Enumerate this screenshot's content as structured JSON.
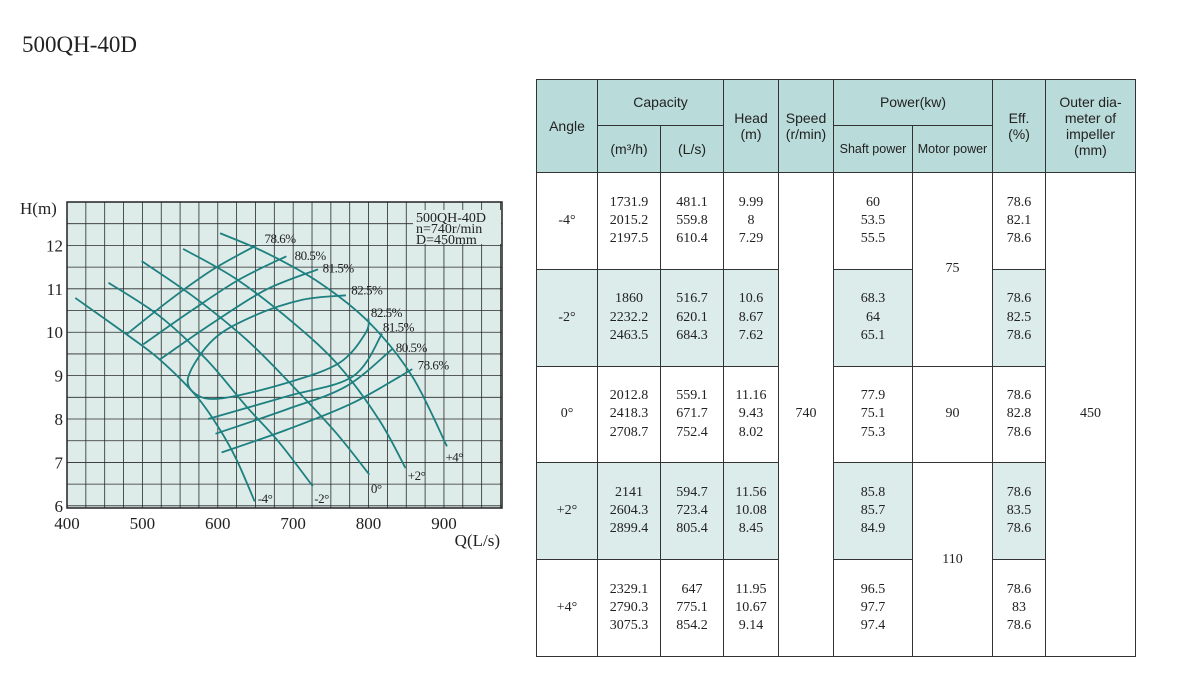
{
  "title": "500QH-40D",
  "chart_data": {
    "type": "line",
    "xlabel": "Q(L/s)",
    "ylabel": "H(m)",
    "xlim": [
      400,
      977
    ],
    "ylim": [
      5.95,
      13.0
    ],
    "xticks": [
      400,
      500,
      600,
      700,
      800,
      900
    ],
    "yticks": [
      6,
      7,
      8,
      9,
      10,
      11,
      12
    ],
    "grid": true,
    "grid_step": {
      "x": 25,
      "y": 0.5
    },
    "colors": {
      "background": "#ddece9",
      "curve": "#1e8080",
      "grid": "#2a2a2a"
    },
    "info_box": [
      "500QH-40D",
      "n=740r/min",
      "D=450mm"
    ],
    "angle_curves": [
      {
        "label": "-4°",
        "label_at": [
          653,
          6.06
        ],
        "points": [
          [
            411,
            10.79
          ],
          [
            479,
            9.95
          ],
          [
            523,
            9.37
          ],
          [
            572,
            8.52
          ],
          [
            603,
            7.75
          ],
          [
            625,
            7.06
          ],
          [
            649,
            6.1
          ]
        ]
      },
      {
        "label": "-2°",
        "label_at": [
          728,
          6.06
        ],
        "points": [
          [
            455,
            11.14
          ],
          [
            523,
            10.37
          ],
          [
            585,
            9.37
          ],
          [
            638,
            8.29
          ],
          [
            682,
            7.45
          ],
          [
            726,
            6.45
          ]
        ]
      },
      {
        "label": "0°",
        "label_at": [
          803,
          6.29
        ],
        "points": [
          [
            499,
            11.64
          ],
          [
            567,
            10.83
          ],
          [
            638,
            9.83
          ],
          [
            700,
            8.75
          ],
          [
            757,
            7.68
          ],
          [
            801,
            6.72
          ]
        ]
      },
      {
        "label": "+2°",
        "label_at": [
          852,
          6.6
        ],
        "points": [
          [
            554,
            11.92
          ],
          [
            625,
            11.22
          ],
          [
            700,
            10.22
          ],
          [
            761,
            9.22
          ],
          [
            814,
            7.98
          ],
          [
            849,
            6.87
          ]
        ]
      },
      {
        "label": "+4°",
        "label_at": [
          902,
          7.02
        ],
        "points": [
          [
            603,
            12.28
          ],
          [
            664,
            11.83
          ],
          [
            735,
            11.14
          ],
          [
            801,
            10.22
          ],
          [
            858,
            8.98
          ],
          [
            904,
            7.37
          ]
        ]
      }
    ],
    "efficiency_curves": [
      {
        "label": "78.6%",
        "label_at": [
          662,
          12.06
        ],
        "points": [
          [
            479,
            9.95
          ],
          [
            537,
            10.75
          ],
          [
            594,
            11.45
          ],
          [
            651,
            12.0
          ]
        ]
      },
      {
        "label": "80.5%",
        "label_at": [
          702,
          11.66
        ],
        "points": [
          [
            501,
            9.72
          ],
          [
            567,
            10.52
          ],
          [
            629,
            11.22
          ],
          [
            691,
            11.75
          ]
        ]
      },
      {
        "label": "81.5%",
        "label_at": [
          739,
          11.38
        ],
        "points": [
          [
            523,
            9.37
          ],
          [
            594,
            10.22
          ],
          [
            664,
            10.98
          ],
          [
            733,
            11.45
          ]
        ]
      },
      {
        "label": "82.5%",
        "label_at": [
          777,
          10.87
        ],
        "points": [
          [
            770,
            10.85
          ],
          [
            713,
            10.75
          ],
          [
            647,
            10.37
          ],
          [
            594,
            9.83
          ],
          [
            561,
            8.98
          ],
          [
            572,
            8.56
          ],
          [
            607,
            8.48
          ],
          [
            691,
            8.83
          ],
          [
            761,
            9.29
          ],
          [
            796,
            9.98
          ],
          [
            800,
            10.33
          ]
        ]
      },
      {
        "label": "82.5%",
        "label_at": [
          803,
          10.35
        ],
        "points": []
      },
      {
        "label": "81.5%",
        "label_at": [
          819,
          10.02
        ],
        "points": [
          [
            587,
            8.0
          ],
          [
            691,
            8.52
          ],
          [
            779,
            8.98
          ],
          [
            818,
            9.97
          ]
        ]
      },
      {
        "label": "80.5%",
        "label_at": [
          836,
          9.54
        ],
        "points": [
          [
            597,
            7.66
          ],
          [
            691,
            8.22
          ],
          [
            770,
            8.75
          ],
          [
            832,
            9.62
          ]
        ]
      },
      {
        "label": "78.6%",
        "label_at": [
          865,
          9.14
        ],
        "points": [
          [
            605,
            7.23
          ],
          [
            691,
            7.75
          ],
          [
            779,
            8.37
          ],
          [
            858,
            9.15
          ]
        ]
      }
    ]
  },
  "table": {
    "headers": {
      "angle": "Angle",
      "capacity": "Capacity",
      "m3h": "(m³/h)",
      "ls": "(L/s)",
      "head": "Head",
      "head_unit": "(m)",
      "speed": "Speed",
      "speed_unit": "(r/min)",
      "power": "Power(kw)",
      "shaft": "Shaft power",
      "motor": "Motor power",
      "eff": "Eff.",
      "eff_unit": "(%)",
      "outer": "Outer dia-meter of impeller",
      "outer_unit": "(mm)"
    },
    "speed": "740",
    "outer_diameter": "450",
    "motor_power": [
      "75",
      "90",
      "110"
    ],
    "rows": [
      {
        "angle": "-4°",
        "m3h": [
          "1731.9",
          "2015.2",
          "2197.5"
        ],
        "ls": [
          "481.1",
          "559.8",
          "610.4"
        ],
        "head": [
          "9.99",
          "8",
          "7.29"
        ],
        "shaft": [
          "60",
          "53.5",
          "55.5"
        ],
        "eff": [
          "78.6",
          "82.1",
          "78.6"
        ]
      },
      {
        "angle": "-2°",
        "m3h": [
          "1860",
          "2232.2",
          "2463.5"
        ],
        "ls": [
          "516.7",
          "620.1",
          "684.3"
        ],
        "head": [
          "10.6",
          "8.67",
          "7.62"
        ],
        "shaft": [
          "68.3",
          "64",
          "65.1"
        ],
        "eff": [
          "78.6",
          "82.5",
          "78.6"
        ]
      },
      {
        "angle": "0°",
        "m3h": [
          "2012.8",
          "2418.3",
          "2708.7"
        ],
        "ls": [
          "559.1",
          "671.7",
          "752.4"
        ],
        "head": [
          "11.16",
          "9.43",
          "8.02"
        ],
        "shaft": [
          "77.9",
          "75.1",
          "75.3"
        ],
        "eff": [
          "78.6",
          "82.8",
          "78.6"
        ]
      },
      {
        "angle": "+2°",
        "m3h": [
          "2141",
          "2604.3",
          "2899.4"
        ],
        "ls": [
          "594.7",
          "723.4",
          "805.4"
        ],
        "head": [
          "11.56",
          "10.08",
          "8.45"
        ],
        "shaft": [
          "85.8",
          "85.7",
          "84.9"
        ],
        "eff": [
          "78.6",
          "83.5",
          "78.6"
        ]
      },
      {
        "angle": "+4°",
        "m3h": [
          "2329.1",
          "2790.3",
          "3075.3"
        ],
        "ls": [
          "647",
          "775.1",
          "854.2"
        ],
        "head": [
          "11.95",
          "10.67",
          "9.14"
        ],
        "shaft": [
          "96.5",
          "97.7",
          "97.4"
        ],
        "eff": [
          "78.6",
          "83",
          "78.6"
        ]
      }
    ]
  }
}
